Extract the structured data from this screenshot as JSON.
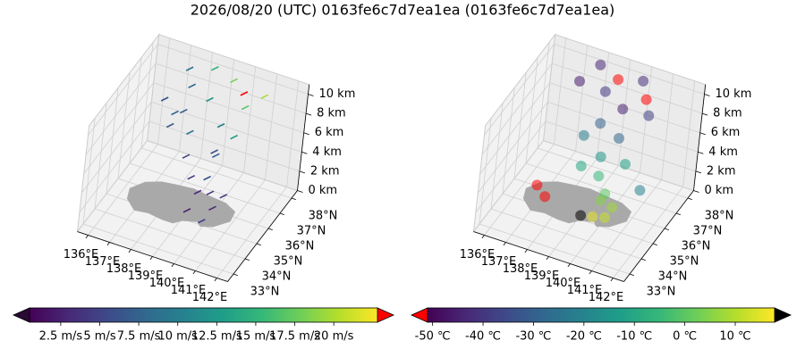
{
  "title": "2026/08/20 (UTC) 0163fe6c7d7ea1ea (0163fe6c7d7ea1ea)",
  "chart_data": [
    {
      "type": "scatter3d",
      "marker": "arrow",
      "x": [
        137.5,
        138.5,
        139.5,
        140.2,
        138,
        139,
        140.5,
        141,
        137.2,
        138.2,
        137.5,
        138.5,
        139.5,
        140,
        138.8,
        139.6,
        137.8,
        140.5,
        139,
        139.5,
        139.8,
        140.2,
        139.2,
        140,
        139.5,
        140.5
      ],
      "y": [
        37.5,
        37.8,
        37.6,
        37.2,
        36.8,
        36.5,
        36.8,
        37.5,
        36,
        35.8,
        36.5,
        36,
        36.8,
        35.5,
        35.2,
        36.2,
        35.5,
        36,
        35.5,
        35.2,
        35.8,
        35.3,
        35,
        34.8,
        36,
        35.6
      ],
      "z": [
        10.5,
        10.8,
        10.6,
        10.4,
        10.2,
        10,
        9.8,
        10.2,
        9.5,
        9.3,
        7.5,
        7,
        7.2,
        6.5,
        6,
        5.5,
        8,
        8,
        3.5,
        2.8,
        2,
        1.5,
        1,
        0.8,
        3,
        2.5
      ],
      "values": [
        9,
        15,
        18,
        24,
        8,
        12,
        17,
        20,
        6,
        7,
        8,
        9,
        10,
        7,
        5,
        6,
        7,
        13,
        4,
        3,
        4,
        3,
        2,
        5,
        6,
        4
      ],
      "xlim": [
        135.5,
        142.5
      ],
      "ylim": [
        32.5,
        38.5
      ],
      "zlim": [
        0,
        11
      ],
      "xticks": [
        {
          "value": 136,
          "label": "136°E"
        },
        {
          "value": 137,
          "label": "137°E"
        },
        {
          "value": 138,
          "label": "138°E"
        },
        {
          "value": 139,
          "label": "139°E"
        },
        {
          "value": 140,
          "label": "140°E"
        },
        {
          "value": 141,
          "label": "141°E"
        },
        {
          "value": 142,
          "label": "142°E"
        }
      ],
      "yticks": [
        {
          "value": 33,
          "label": "33°N"
        },
        {
          "value": 34,
          "label": "34°N"
        },
        {
          "value": 35,
          "label": "35°N"
        },
        {
          "value": 36,
          "label": "36°N"
        },
        {
          "value": 37,
          "label": "37°N"
        },
        {
          "value": 38,
          "label": "38°N"
        }
      ],
      "zticks": [
        {
          "value": 0,
          "label": "0 km"
        },
        {
          "value": 2,
          "label": "2 km"
        },
        {
          "value": 4,
          "label": "4 km"
        },
        {
          "value": 6,
          "label": "6 km"
        },
        {
          "value": 8,
          "label": "8 km"
        },
        {
          "value": 10,
          "label": "10 km"
        }
      ],
      "colorbar": {
        "clim": [
          0.5,
          22.8
        ],
        "under_color": "#2a0a35",
        "over_color": "#ff0000",
        "ticks": [
          {
            "value": 2.5,
            "label": "2.5 m/s"
          },
          {
            "value": 5,
            "label": "5 m/s"
          },
          {
            "value": 7.5,
            "label": "7.5 m/s"
          },
          {
            "value": 10,
            "label": "10 m/s"
          },
          {
            "value": 12.5,
            "label": "12.5 m/s"
          },
          {
            "value": 15,
            "label": "15 m/s"
          },
          {
            "value": 17.5,
            "label": "17.5 m/s"
          },
          {
            "value": 20,
            "label": "20 m/s"
          }
        ]
      }
    },
    {
      "type": "scatter3d",
      "marker": "sphere",
      "x": [
        138,
        139,
        140,
        137.5,
        138.8,
        140.5,
        141,
        139.8,
        139,
        140,
        138.5,
        139.5,
        140.5,
        138.8,
        139.5,
        140,
        139.8,
        140.2,
        139.6,
        140.3,
        139.2,
        137,
        137.5,
        141.2
      ],
      "y": [
        37.8,
        37.5,
        37.8,
        37,
        36.8,
        37.2,
        36.5,
        36.5,
        36.2,
        36,
        35.8,
        35.5,
        35.8,
        35.2,
        35.5,
        35.2,
        35.3,
        35,
        35.1,
        35.4,
        34.8,
        35,
        34.8,
        36
      ],
      "z": [
        10.8,
        10.5,
        10.6,
        10,
        10.2,
        10,
        9.8,
        9.6,
        8,
        7.5,
        7,
        6,
        5.5,
        5,
        4,
        3,
        2,
        1,
        0.5,
        1.5,
        0.8,
        2,
        1.5,
        3
      ],
      "values": [
        -44,
        -55,
        -42,
        -46,
        -40,
        -54,
        -38,
        -45,
        -30,
        -28,
        -22,
        -15,
        -12,
        -10,
        -5,
        0,
        5,
        12,
        15,
        8,
        20,
        -60,
        -58,
        -20
      ],
      "xlim": [
        135.5,
        142.5
      ],
      "ylim": [
        32.5,
        38.5
      ],
      "zlim": [
        0,
        11
      ],
      "xticks": [
        {
          "value": 136,
          "label": "136°E"
        },
        {
          "value": 137,
          "label": "137°E"
        },
        {
          "value": 138,
          "label": "138°E"
        },
        {
          "value": 139,
          "label": "139°E"
        },
        {
          "value": 140,
          "label": "140°E"
        },
        {
          "value": 141,
          "label": "141°E"
        },
        {
          "value": 142,
          "label": "142°E"
        }
      ],
      "yticks": [
        {
          "value": 33,
          "label": "33°N"
        },
        {
          "value": 34,
          "label": "34°N"
        },
        {
          "value": 35,
          "label": "35°N"
        },
        {
          "value": 36,
          "label": "36°N"
        },
        {
          "value": 37,
          "label": "37°N"
        },
        {
          "value": 38,
          "label": "38°N"
        }
      ],
      "zticks": [
        {
          "value": 0,
          "label": "0 km"
        },
        {
          "value": 2,
          "label": "2 km"
        },
        {
          "value": 4,
          "label": "4 km"
        },
        {
          "value": 6,
          "label": "6 km"
        },
        {
          "value": 8,
          "label": "8 km"
        },
        {
          "value": 10,
          "label": "10 km"
        }
      ],
      "colorbar": {
        "clim": [
          -51,
          17.8
        ],
        "under_color": "#ff0000",
        "over_color": "#000000",
        "ticks": [
          {
            "value": -50,
            "label": "-50 ℃"
          },
          {
            "value": -40,
            "label": "-40 ℃"
          },
          {
            "value": -30,
            "label": "-30 ℃"
          },
          {
            "value": -20,
            "label": "-20 ℃"
          },
          {
            "value": -10,
            "label": "-10 ℃"
          },
          {
            "value": 0,
            "label": "0 ℃"
          },
          {
            "value": 10,
            "label": "10 ℃"
          }
        ]
      }
    }
  ]
}
